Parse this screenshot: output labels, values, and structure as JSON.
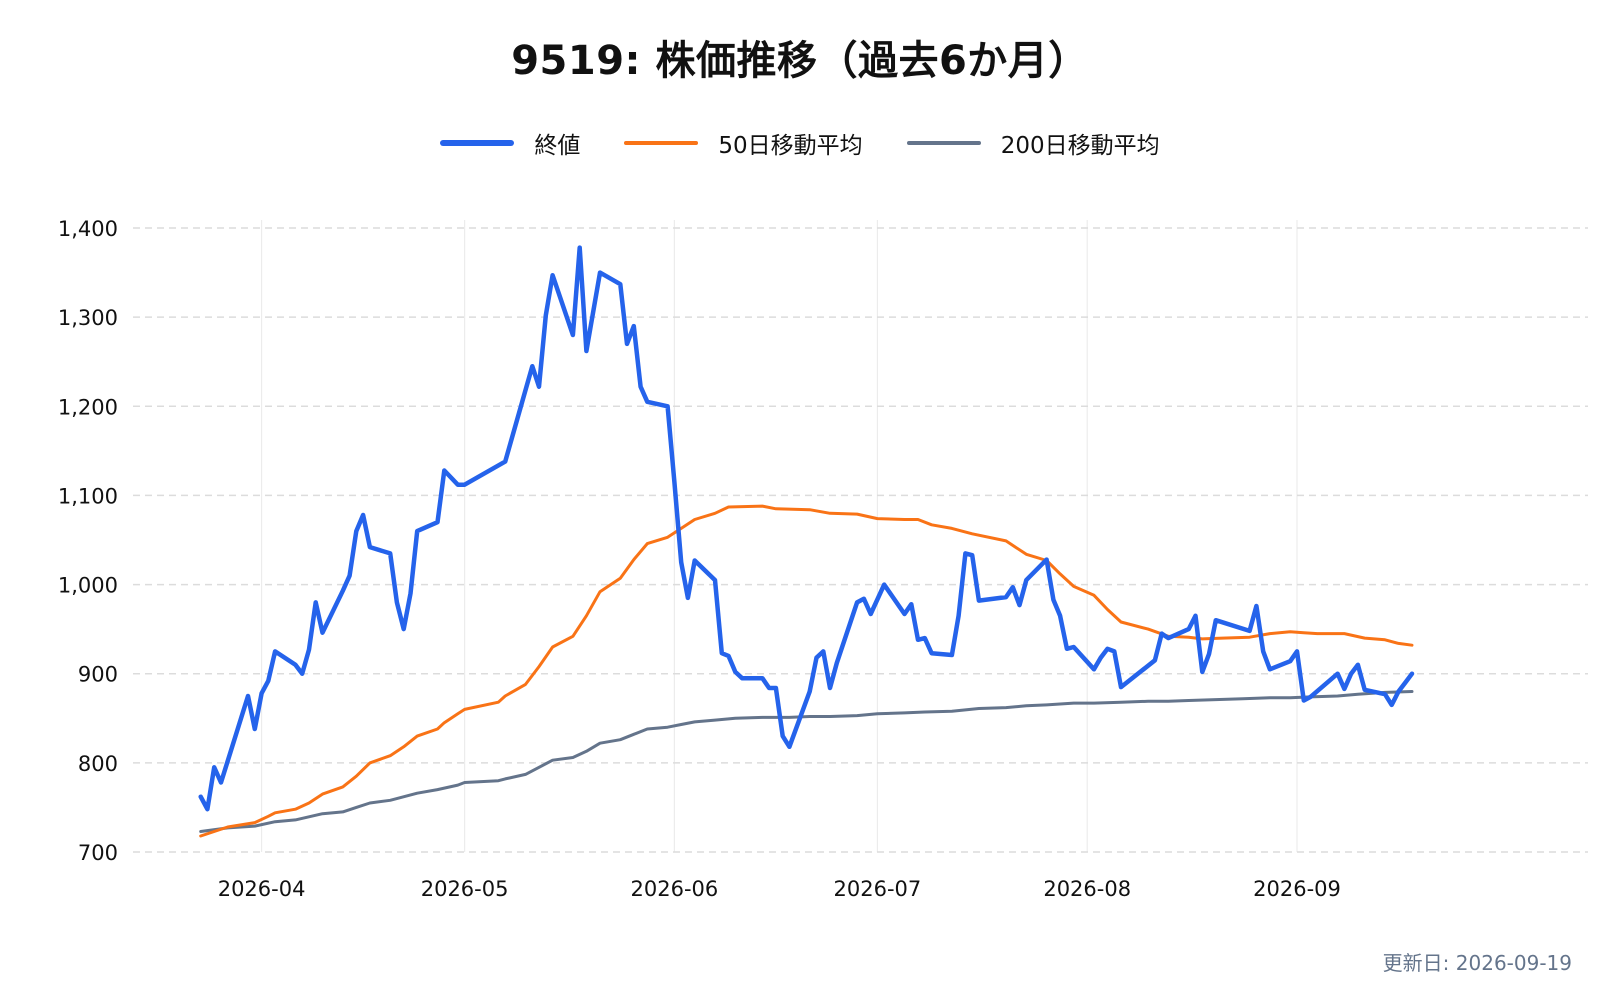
{
  "chart_data": {
    "type": "line",
    "title": "9519: 株価推移（過去6か月）",
    "updated": "更新日: 2026-09-19",
    "ylim": [
      700,
      1400
    ],
    "yticks": [
      700,
      800,
      900,
      1000,
      1100,
      1200,
      1300,
      1400
    ],
    "ytick_labels": [
      "700",
      "800",
      "900",
      "1,000",
      "1,100",
      "1,200",
      "1,300",
      "1,400"
    ],
    "xlim": [
      "2026-03-13",
      "2026-10-14"
    ],
    "xticks": [
      "2026-04-01",
      "2026-05-01",
      "2026-06-01",
      "2026-07-01",
      "2026-08-01",
      "2026-09-01"
    ],
    "xtick_labels": [
      "2026-04",
      "2026-05",
      "2026-06",
      "2026-07",
      "2026-08",
      "2026-09"
    ],
    "grid": true,
    "legend_position": "top-center",
    "series": [
      {
        "name": "終値",
        "color": "#2563eb",
        "width": 4.5,
        "points": [
          [
            "2026-03-23",
            762
          ],
          [
            "2026-03-24",
            748
          ],
          [
            "2026-03-25",
            795
          ],
          [
            "2026-03-26",
            778
          ],
          [
            "2026-03-30",
            875
          ],
          [
            "2026-03-31",
            838
          ],
          [
            "2026-04-01",
            878
          ],
          [
            "2026-04-02",
            892
          ],
          [
            "2026-04-03",
            925
          ],
          [
            "2026-04-06",
            910
          ],
          [
            "2026-04-07",
            900
          ],
          [
            "2026-04-08",
            927
          ],
          [
            "2026-04-09",
            980
          ],
          [
            "2026-04-10",
            946
          ],
          [
            "2026-04-13",
            993
          ],
          [
            "2026-04-14",
            1010
          ],
          [
            "2026-04-15",
            1060
          ],
          [
            "2026-04-16",
            1078
          ],
          [
            "2026-04-17",
            1042
          ],
          [
            "2026-04-20",
            1035
          ],
          [
            "2026-04-21",
            980
          ],
          [
            "2026-04-22",
            950
          ],
          [
            "2026-04-23",
            990
          ],
          [
            "2026-04-24",
            1060
          ],
          [
            "2026-04-27",
            1070
          ],
          [
            "2026-04-28",
            1128
          ],
          [
            "2026-04-30",
            1112
          ],
          [
            "2026-05-01",
            1112
          ],
          [
            "2026-05-07",
            1138
          ],
          [
            "2026-05-11",
            1245
          ],
          [
            "2026-05-12",
            1222
          ],
          [
            "2026-05-13",
            1302
          ],
          [
            "2026-05-14",
            1347
          ],
          [
            "2026-05-17",
            1280
          ],
          [
            "2026-05-18",
            1378
          ],
          [
            "2026-05-19",
            1262
          ],
          [
            "2026-05-21",
            1350
          ],
          [
            "2026-05-24",
            1337
          ],
          [
            "2026-05-25",
            1270
          ],
          [
            "2026-05-26",
            1290
          ],
          [
            "2026-05-27",
            1222
          ],
          [
            "2026-05-28",
            1205
          ],
          [
            "2026-05-31",
            1200
          ],
          [
            "2026-06-01",
            1115
          ],
          [
            "2026-06-02",
            1025
          ],
          [
            "2026-06-03",
            985
          ],
          [
            "2026-06-04",
            1027
          ],
          [
            "2026-06-07",
            1005
          ],
          [
            "2026-06-08",
            923
          ],
          [
            "2026-06-09",
            920
          ],
          [
            "2026-06-10",
            902
          ],
          [
            "2026-06-11",
            895
          ],
          [
            "2026-06-14",
            895
          ],
          [
            "2026-06-15",
            884
          ],
          [
            "2026-06-16",
            884
          ],
          [
            "2026-06-17",
            830
          ],
          [
            "2026-06-18",
            818
          ],
          [
            "2026-06-21",
            880
          ],
          [
            "2026-06-22",
            918
          ],
          [
            "2026-06-23",
            925
          ],
          [
            "2026-06-24",
            884
          ],
          [
            "2026-06-25",
            912
          ],
          [
            "2026-06-28",
            980
          ],
          [
            "2026-06-29",
            984
          ],
          [
            "2026-06-30",
            967
          ],
          [
            "2026-07-02",
            1000
          ],
          [
            "2026-07-05",
            967
          ],
          [
            "2026-07-06",
            978
          ],
          [
            "2026-07-07",
            938
          ],
          [
            "2026-07-08",
            940
          ],
          [
            "2026-07-09",
            923
          ],
          [
            "2026-07-12",
            921
          ],
          [
            "2026-07-13",
            965
          ],
          [
            "2026-07-14",
            1035
          ],
          [
            "2026-07-15",
            1033
          ],
          [
            "2026-07-16",
            982
          ],
          [
            "2026-07-20",
            986
          ],
          [
            "2026-07-21",
            997
          ],
          [
            "2026-07-22",
            977
          ],
          [
            "2026-07-23",
            1005
          ],
          [
            "2026-07-26",
            1028
          ],
          [
            "2026-07-27",
            983
          ],
          [
            "2026-07-28",
            965
          ],
          [
            "2026-07-29",
            928
          ],
          [
            "2026-07-30",
            930
          ],
          [
            "2026-08-02",
            905
          ],
          [
            "2026-08-03",
            918
          ],
          [
            "2026-08-04",
            928
          ],
          [
            "2026-08-05",
            925
          ],
          [
            "2026-08-06",
            885
          ],
          [
            "2026-08-11",
            915
          ],
          [
            "2026-08-12",
            945
          ],
          [
            "2026-08-13",
            940
          ],
          [
            "2026-08-16",
            950
          ],
          [
            "2026-08-17",
            965
          ],
          [
            "2026-08-18",
            902
          ],
          [
            "2026-08-19",
            922
          ],
          [
            "2026-08-20",
            960
          ],
          [
            "2026-08-25",
            948
          ],
          [
            "2026-08-26",
            976
          ],
          [
            "2026-08-27",
            925
          ],
          [
            "2026-08-28",
            905
          ],
          [
            "2026-08-31",
            914
          ],
          [
            "2026-09-01",
            925
          ],
          [
            "2026-09-02",
            870
          ],
          [
            "2026-09-03",
            874
          ],
          [
            "2026-09-07",
            900
          ],
          [
            "2026-09-08",
            883
          ],
          [
            "2026-09-09",
            900
          ],
          [
            "2026-09-10",
            910
          ],
          [
            "2026-09-11",
            882
          ],
          [
            "2026-09-14",
            877
          ],
          [
            "2026-09-15",
            865
          ],
          [
            "2026-09-16",
            880
          ],
          [
            "2026-09-17",
            890
          ],
          [
            "2026-09-18",
            900
          ]
        ]
      },
      {
        "name": "50日移動平均",
        "color": "#f97316",
        "width": 3,
        "points": [
          [
            "2026-03-23",
            718
          ],
          [
            "2026-03-25",
            723
          ],
          [
            "2026-03-27",
            728
          ],
          [
            "2026-03-31",
            733
          ],
          [
            "2026-04-02",
            740
          ],
          [
            "2026-04-03",
            744
          ],
          [
            "2026-04-06",
            748
          ],
          [
            "2026-04-08",
            755
          ],
          [
            "2026-04-10",
            765
          ],
          [
            "2026-04-13",
            773
          ],
          [
            "2026-04-15",
            785
          ],
          [
            "2026-04-17",
            800
          ],
          [
            "2026-04-20",
            808
          ],
          [
            "2026-04-22",
            818
          ],
          [
            "2026-04-24",
            830
          ],
          [
            "2026-04-27",
            838
          ],
          [
            "2026-04-28",
            845
          ],
          [
            "2026-04-30",
            855
          ],
          [
            "2026-05-01",
            860
          ],
          [
            "2026-05-06",
            868
          ],
          [
            "2026-05-07",
            875
          ],
          [
            "2026-05-10",
            888
          ],
          [
            "2026-05-12",
            908
          ],
          [
            "2026-05-14",
            930
          ],
          [
            "2026-05-17",
            942
          ],
          [
            "2026-05-19",
            965
          ],
          [
            "2026-05-21",
            992
          ],
          [
            "2026-05-24",
            1007
          ],
          [
            "2026-05-26",
            1028
          ],
          [
            "2026-05-28",
            1046
          ],
          [
            "2026-05-31",
            1053
          ],
          [
            "2026-06-02",
            1063
          ],
          [
            "2026-06-04",
            1073
          ],
          [
            "2026-06-07",
            1080
          ],
          [
            "2026-06-09",
            1087
          ],
          [
            "2026-06-14",
            1088
          ],
          [
            "2026-06-16",
            1085
          ],
          [
            "2026-06-21",
            1084
          ],
          [
            "2026-06-24",
            1080
          ],
          [
            "2026-06-28",
            1079
          ],
          [
            "2026-07-01",
            1074
          ],
          [
            "2026-07-05",
            1073
          ],
          [
            "2026-07-07",
            1073
          ],
          [
            "2026-07-09",
            1067
          ],
          [
            "2026-07-12",
            1063
          ],
          [
            "2026-07-15",
            1057
          ],
          [
            "2026-07-20",
            1049
          ],
          [
            "2026-07-23",
            1034
          ],
          [
            "2026-07-26",
            1027
          ],
          [
            "2026-07-28",
            1012
          ],
          [
            "2026-07-30",
            998
          ],
          [
            "2026-08-02",
            988
          ],
          [
            "2026-08-04",
            972
          ],
          [
            "2026-08-06",
            958
          ],
          [
            "2026-08-10",
            950
          ],
          [
            "2026-08-13",
            942
          ],
          [
            "2026-08-16",
            941
          ],
          [
            "2026-08-18",
            939
          ],
          [
            "2026-08-21",
            940
          ],
          [
            "2026-08-25",
            941
          ],
          [
            "2026-08-28",
            945
          ],
          [
            "2026-08-31",
            947
          ],
          [
            "2026-09-02",
            946
          ],
          [
            "2026-09-04",
            945
          ],
          [
            "2026-09-08",
            945
          ],
          [
            "2026-09-11",
            940
          ],
          [
            "2026-09-14",
            938
          ],
          [
            "2026-09-16",
            934
          ],
          [
            "2026-09-18",
            932
          ]
        ]
      },
      {
        "name": "200日移動平均",
        "color": "#64748b",
        "width": 3,
        "points": [
          [
            "2026-03-23",
            723
          ],
          [
            "2026-03-27",
            727
          ],
          [
            "2026-03-31",
            729
          ],
          [
            "2026-04-03",
            734
          ],
          [
            "2026-04-06",
            736
          ],
          [
            "2026-04-10",
            743
          ],
          [
            "2026-04-13",
            745
          ],
          [
            "2026-04-15",
            750
          ],
          [
            "2026-04-17",
            755
          ],
          [
            "2026-04-20",
            758
          ],
          [
            "2026-04-24",
            766
          ],
          [
            "2026-04-27",
            770
          ],
          [
            "2026-04-30",
            775
          ],
          [
            "2026-05-01",
            778
          ],
          [
            "2026-05-06",
            780
          ],
          [
            "2026-05-07",
            782
          ],
          [
            "2026-05-10",
            787
          ],
          [
            "2026-05-14",
            803
          ],
          [
            "2026-05-17",
            806
          ],
          [
            "2026-05-19",
            813
          ],
          [
            "2026-05-21",
            822
          ],
          [
            "2026-05-24",
            826
          ],
          [
            "2026-05-26",
            832
          ],
          [
            "2026-05-28",
            838
          ],
          [
            "2026-05-31",
            840
          ],
          [
            "2026-06-02",
            843
          ],
          [
            "2026-06-04",
            846
          ],
          [
            "2026-06-07",
            848
          ],
          [
            "2026-06-10",
            850
          ],
          [
            "2026-06-14",
            851
          ],
          [
            "2026-06-18",
            851
          ],
          [
            "2026-06-21",
            852
          ],
          [
            "2026-06-24",
            852
          ],
          [
            "2026-06-28",
            853
          ],
          [
            "2026-07-01",
            855
          ],
          [
            "2026-07-05",
            856
          ],
          [
            "2026-07-08",
            857
          ],
          [
            "2026-07-12",
            858
          ],
          [
            "2026-07-16",
            861
          ],
          [
            "2026-07-20",
            862
          ],
          [
            "2026-07-23",
            864
          ],
          [
            "2026-07-26",
            865
          ],
          [
            "2026-07-30",
            867
          ],
          [
            "2026-08-02",
            867
          ],
          [
            "2026-08-06",
            868
          ],
          [
            "2026-08-10",
            869
          ],
          [
            "2026-08-13",
            869
          ],
          [
            "2026-08-16",
            870
          ],
          [
            "2026-08-20",
            871
          ],
          [
            "2026-08-24",
            872
          ],
          [
            "2026-08-28",
            873
          ],
          [
            "2026-08-31",
            873
          ],
          [
            "2026-09-03",
            874
          ],
          [
            "2026-09-07",
            875
          ],
          [
            "2026-09-10",
            877
          ],
          [
            "2026-09-14",
            879
          ],
          [
            "2026-09-18",
            880
          ]
        ]
      }
    ]
  }
}
